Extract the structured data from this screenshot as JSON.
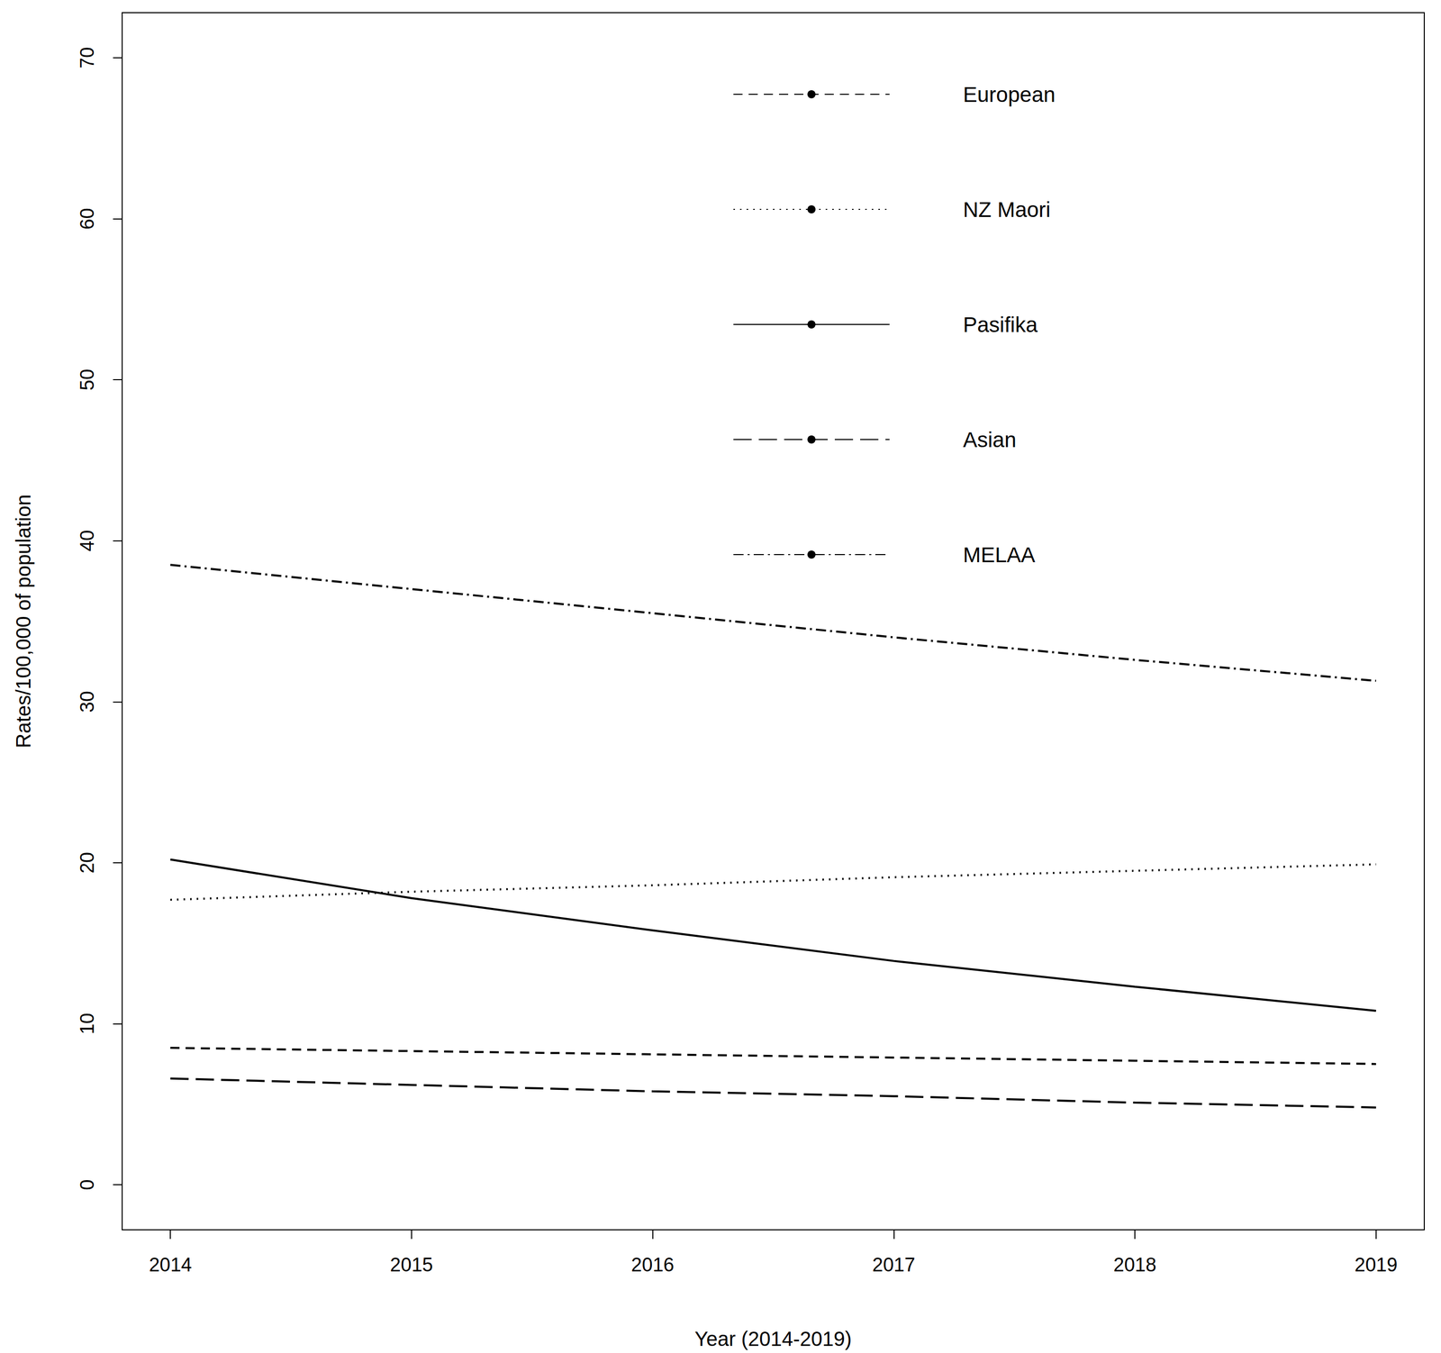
{
  "chart_data": {
    "type": "line",
    "x_label": "Year (2014-2019)",
    "y_label": "Rates/100,000 of population",
    "x": [
      2014,
      2015,
      2016,
      2017,
      2018,
      2019
    ],
    "series": [
      {
        "name": "European",
        "color": "#000000",
        "line_style": "dashed",
        "values": [
          8.5,
          8.3,
          8.1,
          7.9,
          7.7,
          7.5
        ]
      },
      {
        "name": "NZ Maori",
        "color": "#000000",
        "line_style": "dotted",
        "values": [
          17.7,
          18.2,
          18.6,
          19.1,
          19.5,
          19.9
        ]
      },
      {
        "name": "Pasifika",
        "color": "#000000",
        "line_style": "solid",
        "values": [
          20.2,
          17.8,
          15.8,
          13.9,
          12.3,
          10.8
        ]
      },
      {
        "name": "Asian",
        "color": "#000000",
        "line_style": "longdash",
        "values": [
          6.6,
          6.2,
          5.8,
          5.5,
          5.1,
          4.8
        ]
      },
      {
        "name": "MELAA",
        "color": "#000000",
        "line_style": "dashdot",
        "values": [
          38.5,
          37.0,
          35.5,
          34.0,
          32.6,
          31.3
        ]
      }
    ],
    "xlim": [
      2013.8,
      2019.2
    ],
    "xticks": [
      2014,
      2015,
      2016,
      2017,
      2018,
      2019
    ],
    "ylim": [
      -2.8,
      72.8
    ],
    "yticks": [
      0,
      10,
      20,
      30,
      40,
      50,
      60,
      70
    ],
    "legend": "top",
    "grid": false
  }
}
